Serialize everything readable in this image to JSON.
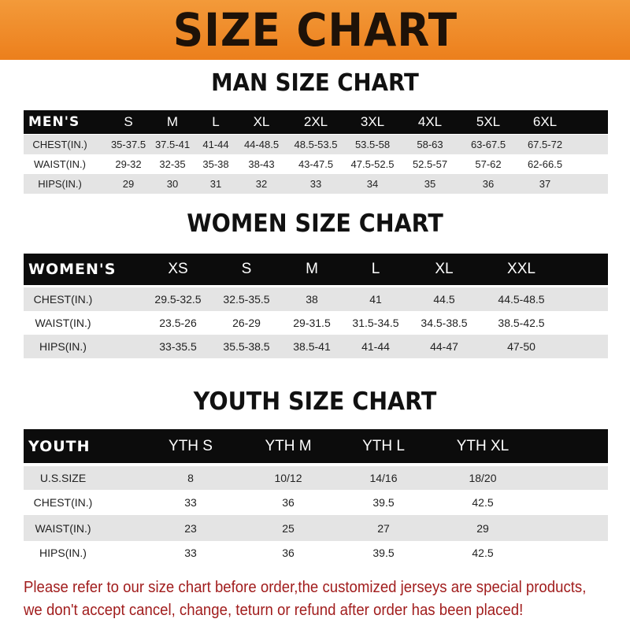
{
  "banner": {
    "title": "SIZE CHART",
    "color": "#ee8a2a"
  },
  "men": {
    "title": "MAN SIZE CHART",
    "header": [
      "MEN'S",
      "S",
      "M",
      "L",
      "XL",
      "2XL",
      "3XL",
      "4XL",
      "5XL",
      "6XL"
    ],
    "rows": [
      [
        "CHEST(IN.)",
        "35-37.5",
        "37.5-41",
        "41-44",
        "44-48.5",
        "48.5-53.5",
        "53.5-58",
        "58-63",
        "63-67.5",
        "67.5-72"
      ],
      [
        "WAIST(IN.)",
        "29-32",
        "32-35",
        "35-38",
        "38-43",
        "43-47.5",
        "47.5-52.5",
        "52.5-57",
        "57-62",
        "62-66.5"
      ],
      [
        "HIPS(IN.)",
        "29",
        "30",
        "31",
        "32",
        "33",
        "34",
        "35",
        "36",
        "37"
      ]
    ]
  },
  "women": {
    "title": "WOMEN SIZE CHART",
    "header": [
      "WOMEN'S",
      "XS",
      "S",
      "M",
      "L",
      "XL",
      "XXL"
    ],
    "rows": [
      [
        "CHEST(IN.)",
        "29.5-32.5",
        "32.5-35.5",
        "38",
        "41",
        "44.5",
        "44.5-48.5"
      ],
      [
        "WAIST(IN.)",
        "23.5-26",
        "26-29",
        "29-31.5",
        "31.5-34.5",
        "34.5-38.5",
        "38.5-42.5"
      ],
      [
        "HIPS(IN.)",
        "33-35.5",
        "35.5-38.5",
        "38.5-41",
        "41-44",
        "44-47",
        "47-50"
      ]
    ]
  },
  "youth": {
    "title": "YOUTH SIZE CHART",
    "header": [
      "YOUTH",
      "YTH S",
      "YTH M",
      "YTH L",
      "YTH XL"
    ],
    "rows": [
      [
        "U.S.SIZE",
        "8",
        "10/12",
        "14/16",
        "18/20"
      ],
      [
        "CHEST(IN.)",
        "33",
        "36",
        "39.5",
        "42.5"
      ],
      [
        "WAIST(IN.)",
        "23",
        "25",
        "27",
        "29"
      ],
      [
        "HIPS(IN.)",
        "33",
        "36",
        "39.5",
        "42.5"
      ]
    ]
  },
  "note": {
    "line1": "Please refer to our size chart before order,the customized jerseys are special products,",
    "line2": "we don't accept cancel, change, teturn or refund after order has been placed!",
    "color": "#a11d1d"
  }
}
